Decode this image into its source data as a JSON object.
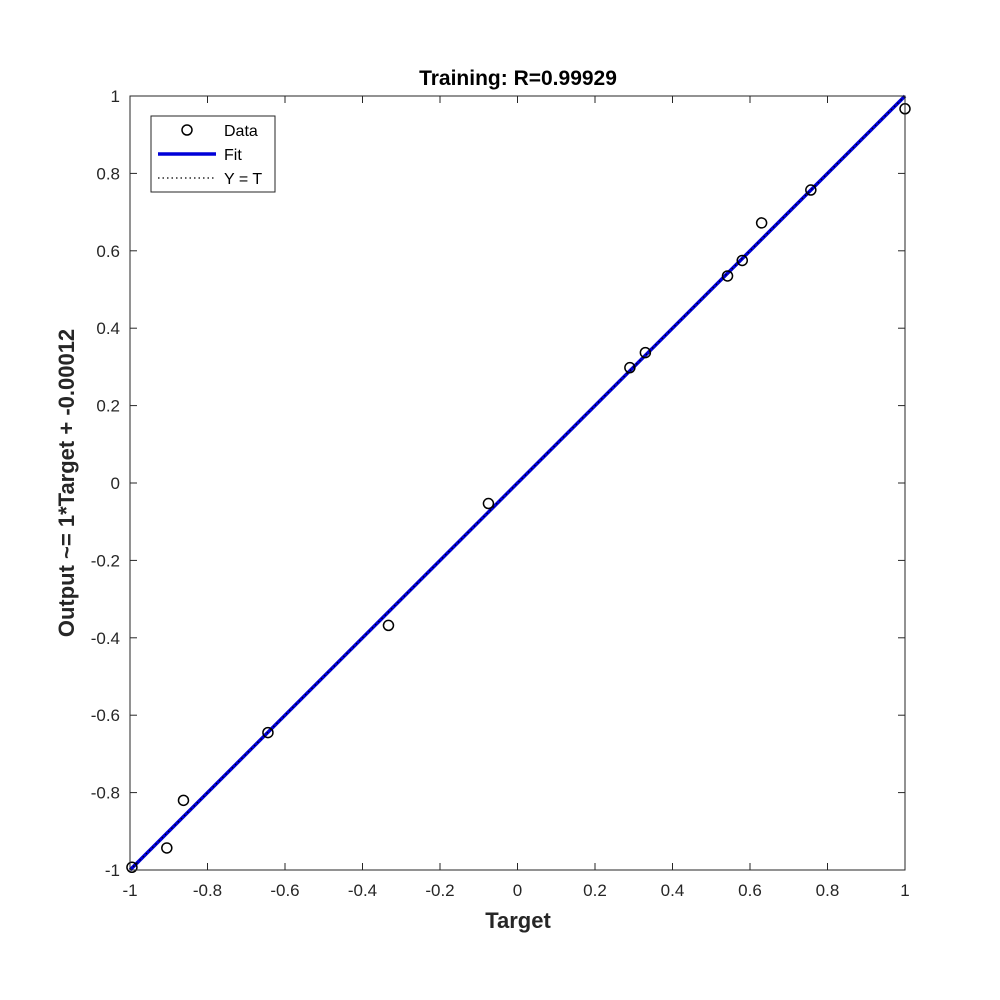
{
  "chart_data": {
    "type": "scatter",
    "title": "Training: R=0.99929",
    "xlabel": "Target",
    "ylabel": "Output ~= 1*Target + -0.00012",
    "xlim": [
      -1,
      1
    ],
    "ylim": [
      -1,
      1
    ],
    "xticks": [
      -1,
      -0.8,
      -0.6,
      -0.4,
      -0.2,
      0,
      0.2,
      0.4,
      0.6,
      0.8,
      1
    ],
    "yticks": [
      -1,
      -0.8,
      -0.6,
      -0.4,
      -0.2,
      0,
      0.2,
      0.4,
      0.6,
      0.8,
      1
    ],
    "xtick_labels": [
      "-1",
      "-0.8",
      "-0.6",
      "-0.4",
      "-0.2",
      "0",
      "0.2",
      "0.4",
      "0.6",
      "0.8",
      "1"
    ],
    "ytick_labels": [
      "-1",
      "-0.8",
      "-0.6",
      "-0.4",
      "-0.2",
      "0",
      "0.2",
      "0.4",
      "0.6",
      "0.8",
      "1"
    ],
    "grid": false,
    "legend_position": "top-left",
    "series": [
      {
        "name": "Data",
        "kind": "scatter",
        "marker": "open-circle",
        "color": "#000000",
        "x": [
          -0.995,
          -0.905,
          -0.862,
          -0.644,
          -0.333,
          -0.075,
          0.29,
          0.33,
          0.542,
          0.58,
          0.63,
          0.757,
          1.0
        ],
        "y": [
          -0.993,
          -0.943,
          -0.82,
          -0.645,
          -0.368,
          -0.053,
          0.298,
          0.337,
          0.535,
          0.575,
          0.672,
          0.757,
          0.967
        ]
      },
      {
        "name": "Fit",
        "kind": "line",
        "color": "#0000d8",
        "slope": 1,
        "intercept": -0.00012
      },
      {
        "name": "Y = T",
        "kind": "line",
        "style": "dotted",
        "color": "#000000",
        "slope": 1,
        "intercept": 0
      }
    ]
  }
}
